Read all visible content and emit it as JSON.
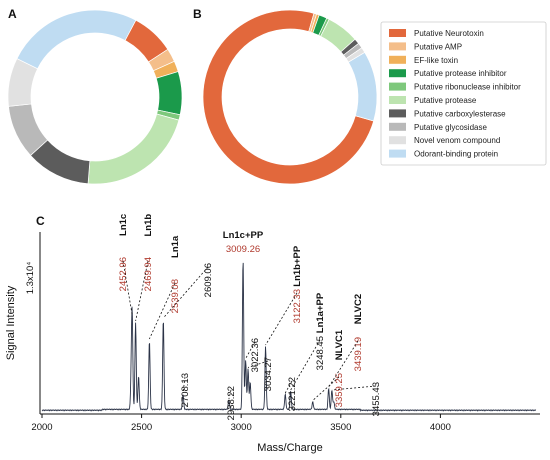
{
  "panels": {
    "a": "A",
    "b": "B",
    "c": "C"
  },
  "chart_data": [
    {
      "type": "pie",
      "panel": "A",
      "hole": "donut",
      "slices": [
        {
          "label": "Putative Neurotoxin",
          "value": 8,
          "color": "#e2683c"
        },
        {
          "label": "Putative AMP",
          "value": 2.5,
          "color": "#f4be8a"
        },
        {
          "label": "EF-like toxin",
          "value": 2,
          "color": "#f0b05a"
        },
        {
          "label": "Putative protease inhibitor",
          "value": 8,
          "color": "#1b9a4b"
        },
        {
          "label": "Putative ribonuclease inhibitor",
          "value": 1,
          "color": "#7ec87c"
        },
        {
          "label": "Putative protease",
          "value": 22,
          "color": "#bde4b0"
        },
        {
          "label": "Putative carboxylesterase",
          "value": 12,
          "color": "#5c5c5c"
        },
        {
          "label": "Putative glycosidase",
          "value": 10,
          "color": "#b9b9b9"
        },
        {
          "label": "Novel venom compound",
          "value": 9,
          "color": "#e1e1e1"
        },
        {
          "label": "Odorant-binding protein",
          "value": 25.5,
          "color": "#bfdcf2"
        }
      ]
    },
    {
      "type": "pie",
      "panel": "B",
      "hole": "donut",
      "slices": [
        {
          "label": "Putative Neurotoxin",
          "value": 75,
          "color": "#e2683c"
        },
        {
          "label": "Putative AMP",
          "value": 0.5,
          "color": "#f4be8a"
        },
        {
          "label": "EF-like toxin",
          "value": 0.5,
          "color": "#f0b05a"
        },
        {
          "label": "Putative protease inhibitor",
          "value": 1.5,
          "color": "#1b9a4b"
        },
        {
          "label": "Putative ribonuclease inhibitor",
          "value": 0.5,
          "color": "#7ec87c"
        },
        {
          "label": "Putative protease",
          "value": 6,
          "color": "#bde4b0"
        },
        {
          "label": "Putative carboxylesterase",
          "value": 1,
          "color": "#5c5c5c"
        },
        {
          "label": "Putative glycosidase",
          "value": 1,
          "color": "#b9b9b9"
        },
        {
          "label": "Novel venom compound",
          "value": 1,
          "color": "#e1e1e1"
        },
        {
          "label": "Odorant-binding protein",
          "value": 13,
          "color": "#bfdcf2"
        }
      ]
    },
    {
      "type": "line",
      "panel": "C",
      "xlabel": "Mass/Charge",
      "ylabel": "Signal Intensity",
      "y_scale_label": "1.3x10⁴",
      "xlim": [
        1990,
        4500
      ],
      "ylim": [
        0,
        1.3
      ],
      "x_ticks": [
        2000,
        2500,
        3000,
        3500,
        4000
      ],
      "line_color": "#2b3347",
      "series": [
        {
          "x": [
            2452.96,
            2469.94,
            2539.08,
            2609.06,
            2708.13,
            2938.22,
            3009.26,
            3022.36,
            3034.27,
            3122.33,
            3221.22,
            3248.45,
            3359.25,
            3439.19,
            3455.43
          ],
          "values": [
            0.62,
            0.58,
            0.46,
            0.6,
            0.1,
            0.06,
            1.0,
            0.33,
            0.27,
            0.42,
            0.1,
            0.12,
            0.05,
            0.14,
            0.13
          ]
        }
      ],
      "annotations": [
        {
          "value": "2452.96",
          "name": "Ln1c",
          "color": "#b03a2e"
        },
        {
          "value": "2469.94",
          "name": "Ln1b",
          "color": "#b03a2e"
        },
        {
          "value": "2539.08",
          "name": "Ln1a",
          "color": "#b03a2e"
        },
        {
          "value": "2609.06",
          "name": "",
          "color": "#111111"
        },
        {
          "value": "2708.13",
          "name": "",
          "color": "#111111"
        },
        {
          "value": "2938.22",
          "name": "",
          "color": "#111111"
        },
        {
          "value": "3009.26",
          "name": "Ln1c+PP",
          "color": "#b03a2e"
        },
        {
          "value": "3022.36",
          "name": "",
          "color": "#111111"
        },
        {
          "value": "3034.27",
          "name": "",
          "color": "#111111"
        },
        {
          "value": "3122.33",
          "name": "Ln1b+PP",
          "color": "#b03a2e"
        },
        {
          "value": "3221.22",
          "name": "",
          "color": "#111111"
        },
        {
          "value": "3248.45",
          "name": "Ln1a+PP",
          "color": "#111111"
        },
        {
          "value": "3359.25",
          "name": "NLVC1",
          "color": "#b03a2e"
        },
        {
          "value": "3439.19",
          "name": "NLVC2",
          "color": "#b03a2e"
        },
        {
          "value": "3455.43",
          "name": "",
          "color": "#111111"
        }
      ]
    }
  ]
}
